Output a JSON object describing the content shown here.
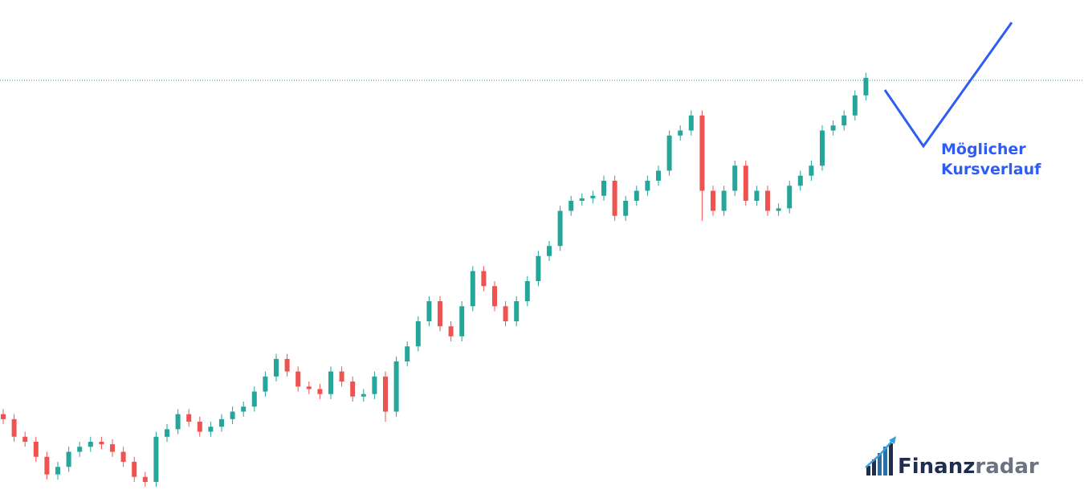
{
  "chart_data": {
    "type": "candlestick",
    "ylim": [
      0,
      100
    ],
    "up_color": "#26a69a",
    "down_color": "#ef5350",
    "open": [
      17.5,
      16.5,
      13,
      12,
      9,
      5.5,
      7,
      10,
      11,
      12,
      11.5,
      10,
      8,
      5,
      4,
      13,
      14.5,
      17.5,
      16,
      14,
      15,
      16.5,
      18,
      19,
      22,
      25,
      28.5,
      26,
      23,
      22.5,
      21.5,
      26,
      24,
      21,
      21.5,
      25,
      18,
      28,
      31,
      36,
      40,
      35,
      33,
      39,
      46,
      43,
      39,
      36,
      40,
      44,
      49,
      51,
      58,
      60,
      60.5,
      61,
      64,
      57,
      60,
      62,
      64,
      66,
      73,
      74,
      77,
      62,
      58,
      62,
      67,
      60,
      62,
      58,
      58.5,
      63,
      65,
      67,
      74,
      75,
      77,
      81
    ],
    "high": [
      18.5,
      17.5,
      14,
      13,
      10,
      8,
      11,
      12,
      13,
      13,
      12.5,
      11,
      9,
      6,
      14,
      15.5,
      18.5,
      18.5,
      17,
      16,
      17.5,
      19,
      20,
      23,
      26,
      29.5,
      29.5,
      27,
      24,
      23.5,
      27,
      27,
      25,
      22.5,
      26,
      26,
      29,
      32,
      37,
      41,
      41,
      36,
      40,
      47,
      47,
      44,
      40,
      41,
      45,
      50,
      52,
      59,
      61,
      61.5,
      62,
      65,
      65,
      61,
      63,
      65,
      67,
      74,
      75,
      78,
      78,
      63,
      63,
      68,
      68,
      63,
      63,
      59.5,
      64,
      66,
      68,
      75,
      76,
      78,
      82,
      85.5
    ],
    "low": [
      15.5,
      12,
      11,
      8,
      4.5,
      4.5,
      6,
      9,
      10,
      10.5,
      9,
      7,
      4,
      3,
      3,
      12,
      13.5,
      15,
      13,
      13,
      14,
      15.5,
      17,
      18,
      21,
      24,
      25,
      22,
      21.5,
      20.5,
      20.5,
      23,
      20,
      20,
      20.5,
      16,
      17,
      27,
      30,
      35,
      34,
      32,
      32,
      38,
      42,
      38,
      35,
      35,
      39,
      43,
      48,
      50,
      57,
      59,
      59.5,
      60,
      56,
      56,
      59,
      61,
      63,
      65,
      72,
      73,
      56,
      57,
      57,
      61,
      59,
      59,
      57,
      57,
      57.5,
      62,
      64,
      66,
      73,
      74,
      76,
      80
    ],
    "close": [
      16.5,
      13,
      12,
      9,
      5.5,
      7,
      10,
      11,
      12,
      11.5,
      10,
      8,
      5,
      4,
      13,
      14.5,
      17.5,
      16,
      14,
      15,
      16.5,
      18,
      19,
      22,
      25,
      28.5,
      26,
      23,
      22.5,
      21.5,
      26,
      24,
      21,
      21.5,
      25,
      18,
      28,
      31,
      36,
      40,
      35,
      33,
      39,
      46,
      43,
      39,
      36,
      40,
      44,
      49,
      51,
      58,
      60,
      60.5,
      61,
      64,
      57,
      60,
      62,
      64,
      66,
      73,
      74,
      77,
      62,
      58,
      62,
      67,
      60,
      62,
      58,
      58.5,
      63,
      65,
      67,
      74,
      75,
      77,
      81,
      84.5
    ],
    "annotation_lines": [
      "Möglicher",
      "Kursverlauf"
    ],
    "logo": {
      "part1": "Finanz",
      "part2": "radar"
    }
  }
}
